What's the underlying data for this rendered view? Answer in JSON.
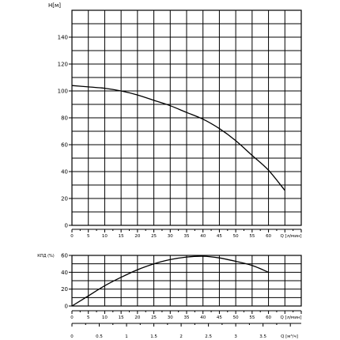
{
  "chart_data": [
    {
      "type": "line",
      "ylabel": "H[м]",
      "xlabel": "Q [л/мин]",
      "xlim": [
        0,
        70
      ],
      "ylim": [
        0,
        160
      ],
      "x_ticks": [
        0,
        5,
        10,
        15,
        20,
        25,
        30,
        35,
        40,
        45,
        50,
        55,
        60
      ],
      "x_tick_labels": [
        "0",
        "5",
        "10",
        "15",
        "20",
        "25",
        "30",
        "35",
        "40",
        "45",
        "50",
        "55",
        "60"
      ],
      "y_ticks": [
        0,
        20,
        40,
        60,
        80,
        100,
        120,
        140
      ],
      "y_tick_labels": [
        "0",
        "20",
        "40",
        "60",
        "80",
        "100",
        "120",
        "140"
      ],
      "grid": true,
      "series": [
        {
          "x": [
            0,
            5,
            10,
            15,
            20,
            25,
            30,
            35,
            40,
            45,
            50,
            55,
            60,
            65
          ],
          "y": [
            104,
            103,
            102,
            100,
            97,
            93,
            89,
            84,
            79,
            72,
            63,
            52,
            41,
            26
          ]
        }
      ]
    },
    {
      "type": "line",
      "ylabel": "КПД (%)",
      "xlabel": "Q [л/мин]",
      "xlim": [
        0,
        70
      ],
      "ylim": [
        0,
        60
      ],
      "x_ticks": [
        0,
        5,
        10,
        15,
        20,
        25,
        30,
        35,
        40,
        45,
        50,
        55,
        60
      ],
      "x_tick_labels": [
        "0",
        "5",
        "10",
        "15",
        "20",
        "25",
        "30",
        "35",
        "40",
        "45",
        "50",
        "55",
        "60"
      ],
      "y_ticks": [
        0,
        20,
        40,
        60
      ],
      "y_tick_labels": [
        "0",
        "20",
        "40",
        "60"
      ],
      "grid": true,
      "secondary_x": {
        "label": "Q [м³/ч]",
        "ticks": [
          0,
          0.5,
          1,
          1.5,
          2,
          2.5,
          3,
          3.5
        ],
        "tick_labels": [
          "0",
          "0.5",
          "1",
          "1.5",
          "2",
          "2.5",
          "3",
          "3.5"
        ]
      },
      "series": [
        {
          "x": [
            0,
            5,
            10,
            15,
            20,
            25,
            30,
            35,
            40,
            45,
            50,
            55,
            60
          ],
          "y": [
            0,
            12,
            24,
            34,
            43,
            50,
            55,
            58,
            59,
            57,
            53,
            48,
            40
          ]
        }
      ]
    }
  ]
}
